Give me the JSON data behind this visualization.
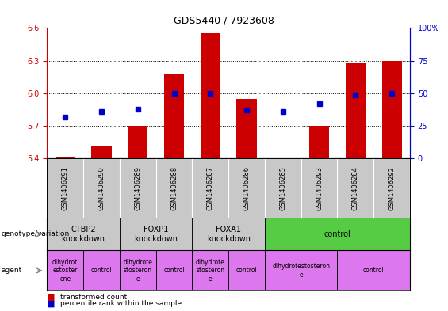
{
  "title": "GDS5440 / 7923608",
  "samples": [
    "GSM1406291",
    "GSM1406290",
    "GSM1406289",
    "GSM1406288",
    "GSM1406287",
    "GSM1406286",
    "GSM1406285",
    "GSM1406293",
    "GSM1406284",
    "GSM1406292"
  ],
  "transformed_count": [
    5.42,
    5.52,
    5.7,
    6.18,
    6.55,
    5.95,
    5.4,
    5.7,
    6.28,
    6.3
  ],
  "percentile_rank": [
    32,
    36,
    38,
    50,
    50,
    37,
    36,
    42,
    49,
    50
  ],
  "ylim_left": [
    5.4,
    6.6
  ],
  "ylim_right": [
    0,
    100
  ],
  "yticks_left": [
    5.4,
    5.7,
    6.0,
    6.3,
    6.6
  ],
  "yticks_right": [
    0,
    25,
    50,
    75,
    100
  ],
  "bar_color": "#cc0000",
  "dot_color": "#0000cc",
  "genotype_groups": [
    {
      "label": "CTBP2\nknockdown",
      "start": 0,
      "end": 2,
      "color": "#c8c8c8"
    },
    {
      "label": "FOXP1\nknockdown",
      "start": 2,
      "end": 4,
      "color": "#c8c8c8"
    },
    {
      "label": "FOXA1\nknockdown",
      "start": 4,
      "end": 6,
      "color": "#c8c8c8"
    },
    {
      "label": "control",
      "start": 6,
      "end": 10,
      "color": "#55cc44"
    }
  ],
  "agent_groups": [
    {
      "label": "dihydrot\nestoster\none",
      "start": 0,
      "end": 1,
      "color": "#dd77ee"
    },
    {
      "label": "control",
      "start": 1,
      "end": 2,
      "color": "#dd77ee"
    },
    {
      "label": "dihydrote\nstosteron\ne",
      "start": 2,
      "end": 3,
      "color": "#dd77ee"
    },
    {
      "label": "control",
      "start": 3,
      "end": 4,
      "color": "#dd77ee"
    },
    {
      "label": "dihydrote\nstosteron\ne",
      "start": 4,
      "end": 5,
      "color": "#dd77ee"
    },
    {
      "label": "control",
      "start": 5,
      "end": 6,
      "color": "#dd77ee"
    },
    {
      "label": "dihydrotestosteron\ne",
      "start": 6,
      "end": 8,
      "color": "#dd77ee"
    },
    {
      "label": "control",
      "start": 8,
      "end": 10,
      "color": "#dd77ee"
    }
  ],
  "sample_box_color": "#c8c8c8",
  "left_axis_color": "#cc0000",
  "right_axis_color": "#0000cc",
  "title_fontsize": 9,
  "tick_fontsize": 7,
  "sample_fontsize": 6,
  "table_fontsize": 7,
  "agent_fontsize": 5.5
}
